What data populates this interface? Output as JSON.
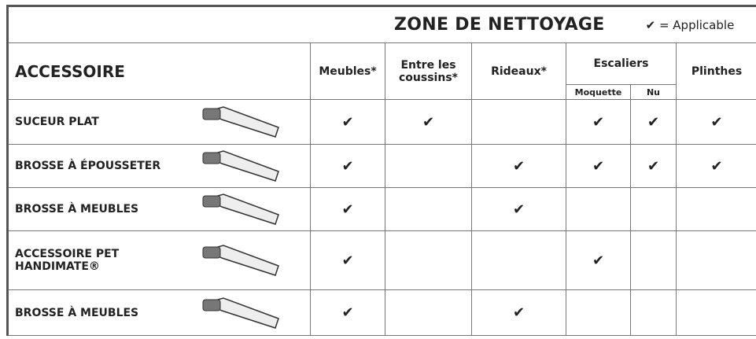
{
  "header": {
    "title": "ZONE DE NETTOYAGE",
    "legend": "✔ = Applicable"
  },
  "table": {
    "columns": [
      "ACCESSOIRE",
      "Meubles*",
      "Entre les coussins*",
      "Rideaux*",
      "Escaliers",
      "Plinthes"
    ],
    "subcolumns": [
      "Moquette",
      "Nu"
    ],
    "rows": [
      {
        "name": "SUCEUR PLAT",
        "cells": [
          "✔",
          "✔",
          null,
          "✔",
          "✔",
          "✔"
        ]
      },
      {
        "name": "BROSSE À ÉPOUSSETER",
        "cells": [
          "✔",
          null,
          "✔",
          "✔",
          "✔",
          "✔"
        ]
      },
      {
        "name": "BROSSE À MEUBLES",
        "cells": [
          "✔",
          null,
          "✔",
          null,
          null,
          null
        ]
      },
      {
        "name": "ACCESSOIRE PET HANDIMATE®",
        "cells": [
          "✔",
          null,
          null,
          "✔",
          null,
          null
        ]
      },
      {
        "name": "BROSSE À MEUBLES",
        "cells": [
          "✔",
          null,
          "✔",
          null,
          null,
          null
        ]
      }
    ]
  }
}
